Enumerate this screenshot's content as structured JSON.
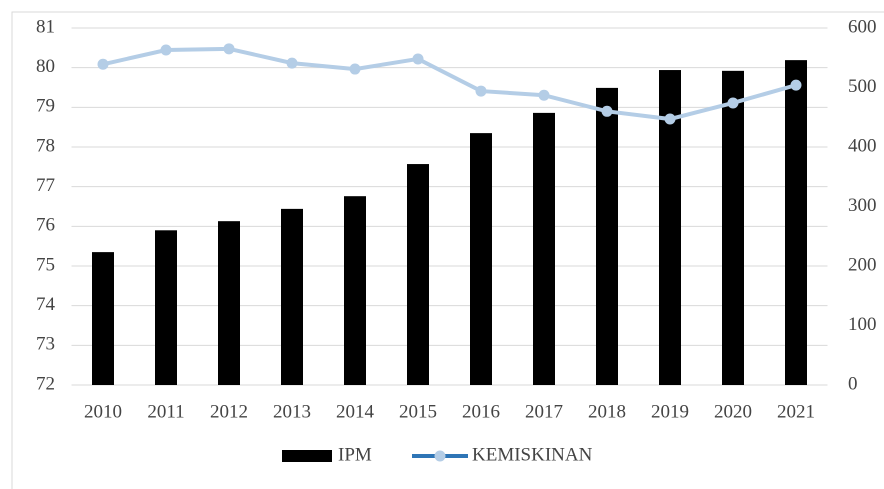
{
  "chart_data": {
    "type": "bar_line",
    "categories": [
      "2010",
      "2011",
      "2012",
      "2013",
      "2014",
      "2015",
      "2016",
      "2017",
      "2018",
      "2019",
      "2020",
      "2021"
    ],
    "series": [
      {
        "name": "IPM",
        "color": "#000000",
        "type": "bar",
        "values": [
          75.35,
          75.9,
          76.13,
          76.44,
          76.76,
          77.57,
          78.35,
          78.86,
          79.49,
          79.94,
          79.92,
          80.19
        ]
      },
      {
        "name": "KEMISKINAN",
        "color": "#b4cde6",
        "type": "line",
        "axis": "y2",
        "values": [
          539,
          563,
          565,
          541,
          531,
          548,
          494,
          487,
          460,
          447,
          474,
          504
        ]
      }
    ],
    "ylim": [
      72,
      81
    ],
    "yticks": [
      72,
      73,
      74,
      75,
      76,
      77,
      78,
      79,
      80,
      81
    ],
    "y2lim": [
      0,
      600
    ],
    "y2ticks": [
      0,
      100,
      200,
      300,
      400,
      500,
      600
    ],
    "grid": true,
    "legend": "bottom"
  }
}
